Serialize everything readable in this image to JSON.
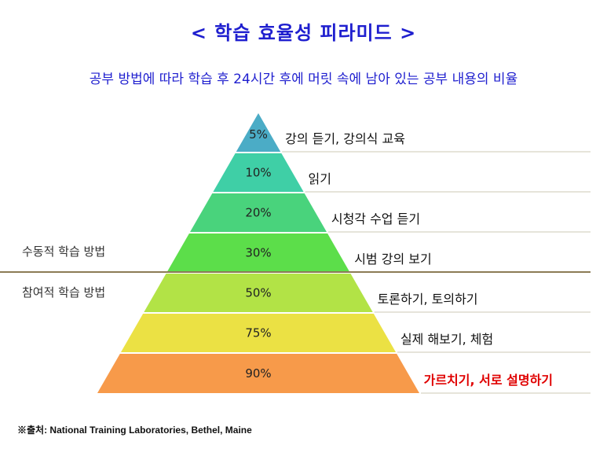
{
  "title": "< 학습 효율성 피라미드 >",
  "subtitle": "공부 방법에 따라 학습 후 24시간 후에 머릿 속에 남아 있는 공부 내용의 비율",
  "groups": {
    "passive": "수동적 학습 방법",
    "participatory": "참여적 학습 방법"
  },
  "levels": [
    {
      "percent": "5%",
      "value": 5,
      "method": "강의 듣기, 강의식 교육",
      "color": "#4bacc6",
      "emphasis": false
    },
    {
      "percent": "10%",
      "value": 10,
      "method": "읽기",
      "color": "#3fcfa6",
      "emphasis": false
    },
    {
      "percent": "20%",
      "value": 20,
      "method": "시청각 수업 듣기",
      "color": "#49d37c",
      "emphasis": false
    },
    {
      "percent": "30%",
      "value": 30,
      "method": "시범 강의 보기",
      "color": "#5cde4a",
      "emphasis": false
    },
    {
      "percent": "50%",
      "value": 50,
      "method": "토론하기, 토의하기",
      "color": "#b2e346",
      "emphasis": false
    },
    {
      "percent": "75%",
      "value": 75,
      "method": "실제 해보기, 체험",
      "color": "#ebe144",
      "emphasis": false
    },
    {
      "percent": "90%",
      "value": 90,
      "method": "가르치기, 서로 설명하기",
      "color": "#f79a4a",
      "emphasis": true
    }
  ],
  "source": "※출처: National Training Laboratories, Bethel, Maine"
}
